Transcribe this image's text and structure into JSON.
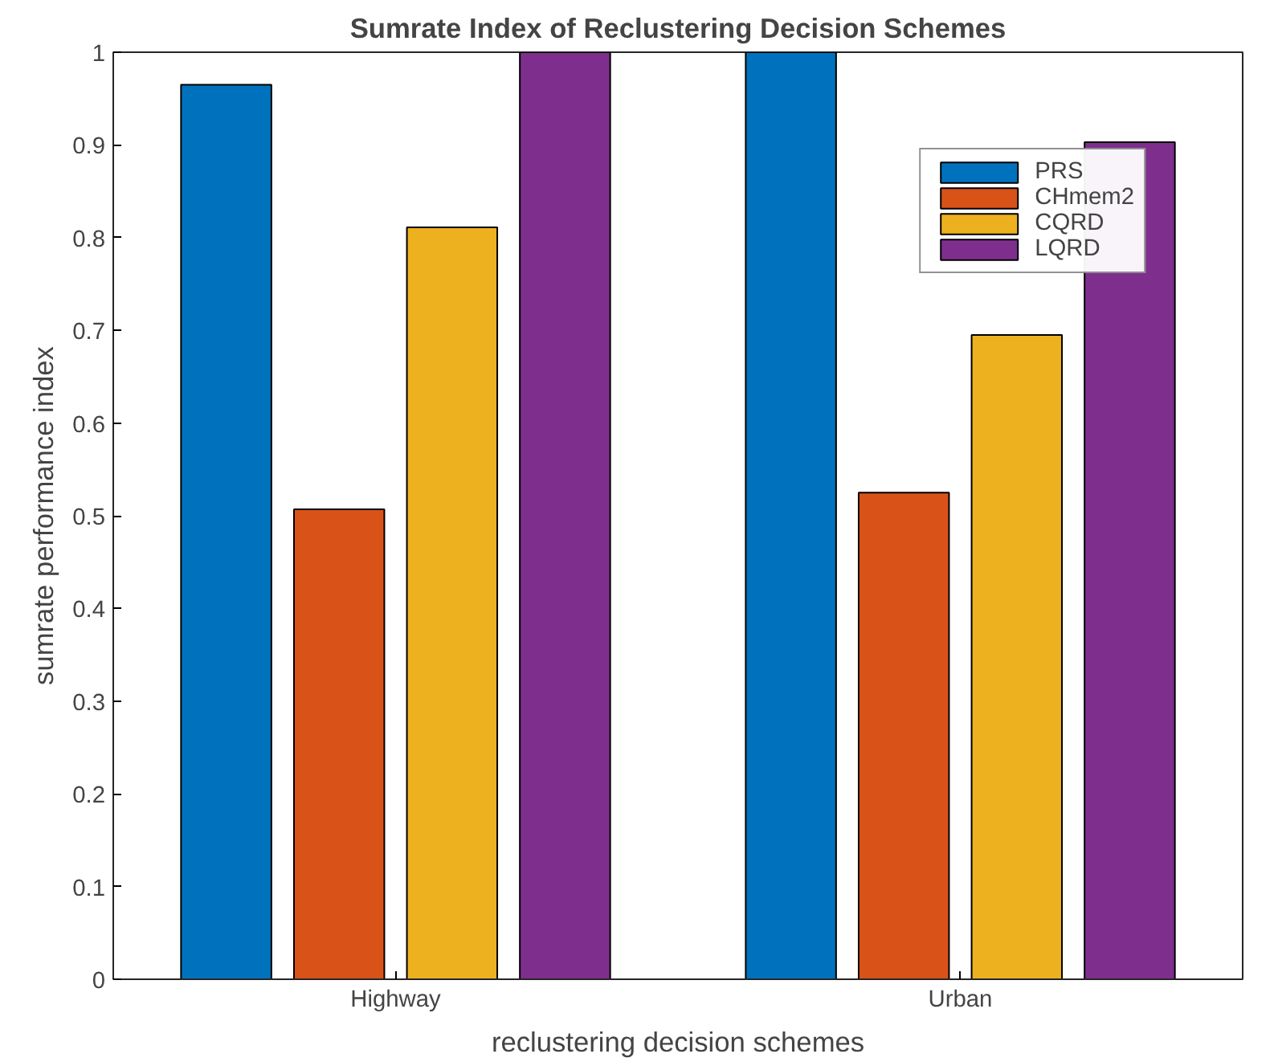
{
  "chart_data": {
    "type": "bar",
    "title": "Sumrate Index of Reclustering Decision Schemes",
    "xlabel": "reclustering decision schemes",
    "ylabel": "sumrate performance index",
    "categories": [
      "Highway",
      "Urban"
    ],
    "series": [
      {
        "name": "PRS",
        "color": "#0072bd",
        "values": [
          0.965,
          1.0
        ]
      },
      {
        "name": "CHmem2",
        "color": "#d95319",
        "values": [
          0.507,
          0.525
        ]
      },
      {
        "name": "CQRD",
        "color": "#edb120",
        "values": [
          0.811,
          0.695
        ]
      },
      {
        "name": "LQRD",
        "color": "#7e2f8e",
        "values": [
          1.0,
          0.903
        ]
      }
    ],
    "ylim": [
      0,
      1
    ],
    "yticks": [
      0,
      0.1,
      0.2,
      0.3,
      0.4,
      0.5,
      0.6,
      0.7,
      0.8,
      0.9,
      1
    ],
    "grid": false,
    "legend": "top right"
  }
}
